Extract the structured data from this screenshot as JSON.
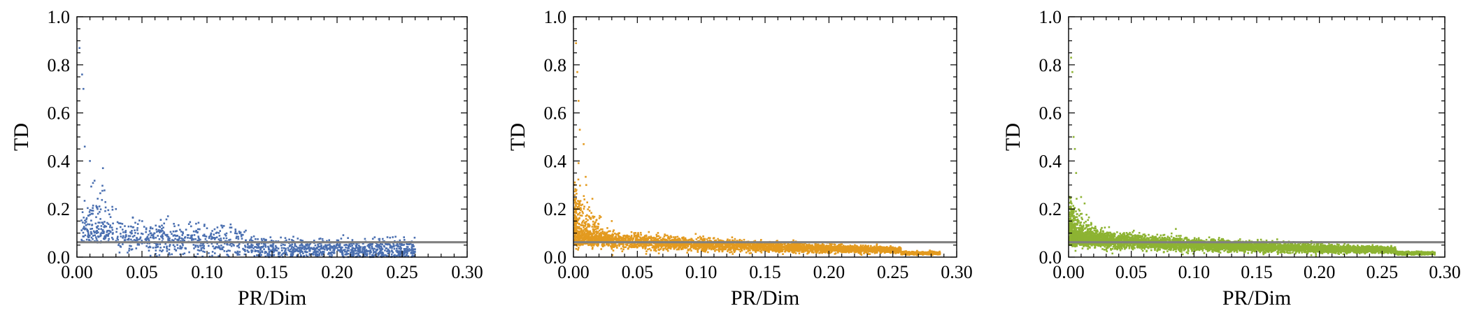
{
  "chart_data": [
    {
      "type": "scatter",
      "title": "",
      "xlabel": "PR/Dim",
      "ylabel": "TD",
      "xlim": [
        0,
        0.3
      ],
      "ylim": [
        0,
        1.0
      ],
      "x_ticks": [
        "0.00",
        "0.05",
        "0.10",
        "0.15",
        "0.20",
        "0.25",
        "0.30"
      ],
      "y_ticks": [
        "0.0",
        "0.2",
        "0.4",
        "0.6",
        "0.8",
        "1.0"
      ],
      "grid": false,
      "color": "#4a6fb0",
      "reference_line": {
        "y": 0.062,
        "x_range": [
          0,
          0.3
        ],
        "color": "#808080"
      },
      "approx_point_count": 1500,
      "x_extent": 0.26,
      "points_sample": [
        [
          0.002,
          0.87
        ],
        [
          0.004,
          0.76
        ],
        [
          0.005,
          0.7
        ],
        [
          0.006,
          0.46
        ],
        [
          0.01,
          0.4
        ],
        [
          0.02,
          0.37
        ],
        [
          0.03,
          0.2
        ],
        [
          0.07,
          0.17
        ],
        [
          0.1,
          0.12
        ],
        [
          0.2,
          0.07
        ],
        [
          0.25,
          0.02
        ]
      ]
    },
    {
      "type": "scatter",
      "title": "",
      "xlabel": "PR/Dim",
      "ylabel": "TD",
      "xlim": [
        0,
        0.3
      ],
      "ylim": [
        0,
        1.0
      ],
      "x_ticks": [
        "0.00",
        "0.05",
        "0.10",
        "0.15",
        "0.20",
        "0.25",
        "0.30"
      ],
      "y_ticks": [
        "0.0",
        "0.2",
        "0.4",
        "0.6",
        "0.8",
        "1.0"
      ],
      "grid": false,
      "color": "#e39a1f",
      "reference_line": {
        "y": 0.062,
        "x_range": [
          0,
          0.3
        ],
        "color": "#808080"
      },
      "approx_point_count": 4500,
      "x_extent": 0.285,
      "points_sample": [
        [
          0.002,
          0.89
        ],
        [
          0.003,
          0.77
        ],
        [
          0.004,
          0.65
        ],
        [
          0.005,
          0.53
        ],
        [
          0.008,
          0.47
        ],
        [
          0.01,
          0.3
        ],
        [
          0.03,
          0.15
        ],
        [
          0.1,
          0.08
        ],
        [
          0.2,
          0.04
        ],
        [
          0.28,
          0.01
        ]
      ]
    },
    {
      "type": "scatter",
      "title": "",
      "xlabel": "PR/Dim",
      "ylabel": "TD",
      "xlim": [
        0,
        0.3
      ],
      "ylim": [
        0,
        1.0
      ],
      "x_ticks": [
        "0.00",
        "0.05",
        "0.10",
        "0.15",
        "0.20",
        "0.25",
        "0.30"
      ],
      "y_ticks": [
        "0.0",
        "0.2",
        "0.4",
        "0.6",
        "0.8",
        "1.0"
      ],
      "grid": false,
      "color": "#8db332",
      "reference_line": {
        "y": 0.062,
        "x_range": [
          0,
          0.3
        ],
        "color": "#808080"
      },
      "approx_point_count": 6500,
      "x_extent": 0.29,
      "points_sample": [
        [
          0.002,
          0.83
        ],
        [
          0.003,
          0.77
        ],
        [
          0.004,
          0.5
        ],
        [
          0.005,
          0.45
        ],
        [
          0.006,
          0.35
        ],
        [
          0.01,
          0.25
        ],
        [
          0.02,
          0.12
        ],
        [
          0.1,
          0.07
        ],
        [
          0.2,
          0.04
        ],
        [
          0.29,
          0.015
        ]
      ]
    }
  ]
}
